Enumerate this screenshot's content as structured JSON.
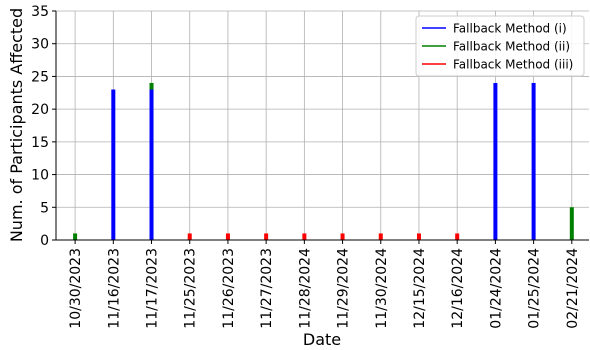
{
  "chart_data": {
    "type": "bar",
    "xlabel": "Date",
    "ylabel": "Num. of Participants Affected",
    "ylim": [
      0,
      35
    ],
    "yticks": [
      0,
      5,
      10,
      15,
      20,
      25,
      30,
      35
    ],
    "grid": true,
    "legend_position": "top-right",
    "categories": [
      "10/30/2023",
      "11/16/2023",
      "11/17/2023",
      "11/25/2023",
      "11/26/2023",
      "11/27/2023",
      "11/28/2024",
      "11/29/2024",
      "11/30/2024",
      "12/15/2024",
      "12/16/2024",
      "01/24/2024",
      "01/25/2024",
      "02/21/2024"
    ],
    "series": [
      {
        "name": "Fallback Method (i)",
        "color": "#0000ff",
        "values": [
          0,
          23,
          23,
          0,
          0,
          0,
          0,
          0,
          0,
          0,
          0,
          24,
          24,
          0
        ]
      },
      {
        "name": "Fallback Method (ii)",
        "color": "#008000",
        "values": [
          1,
          0,
          1,
          0,
          0,
          0,
          0,
          0,
          0,
          0,
          0,
          0,
          0,
          5
        ]
      },
      {
        "name": "Fallback Method (iii)",
        "color": "#ff0000",
        "values": [
          0,
          0,
          0,
          1,
          1,
          1,
          1,
          1,
          1,
          1,
          1,
          0,
          0,
          0
        ]
      }
    ]
  }
}
